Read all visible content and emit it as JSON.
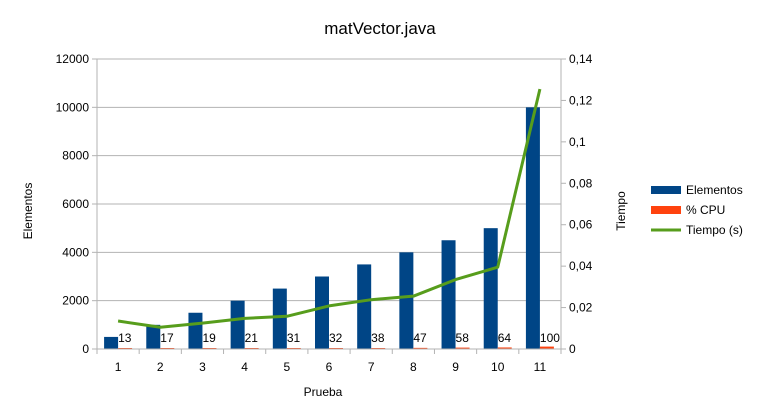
{
  "chart_data": {
    "type": "bar",
    "title": "matVector.java",
    "xlabel": "Prueba",
    "ylabel": "Elementos",
    "y2label": "Tiempo",
    "categories": [
      "1",
      "2",
      "3",
      "4",
      "5",
      "6",
      "7",
      "8",
      "9",
      "10",
      "11"
    ],
    "ylim": [
      0,
      12000
    ],
    "y_ticks": [
      "0",
      "2000",
      "4000",
      "6000",
      "8000",
      "10000",
      "12000"
    ],
    "y2lim": [
      0,
      0.14
    ],
    "y2_ticks": [
      "0",
      "0,02",
      "0,04",
      "0,06",
      "0,08",
      "0,1",
      "0,12",
      "0,14"
    ],
    "grid": true,
    "legend_position": "right",
    "series": [
      {
        "name": "Elementos",
        "type": "bar",
        "axis": "left",
        "color": "#004586",
        "values": [
          500,
          1000,
          1500,
          2000,
          2500,
          3000,
          3500,
          4000,
          4500,
          5000,
          10000
        ]
      },
      {
        "name": "% CPU",
        "type": "bar",
        "axis": "left",
        "color": "#ff420e",
        "values": [
          13,
          17,
          19,
          21,
          31,
          32,
          38,
          47,
          58,
          64,
          100
        ],
        "data_labels": [
          "13",
          "17",
          "19",
          "21",
          "31",
          "32",
          "38",
          "47",
          "58",
          "64",
          "100"
        ]
      },
      {
        "name": "Tiempo (s)",
        "type": "line",
        "axis": "right",
        "color": "#579d1c",
        "values": [
          0.0135,
          0.0105,
          0.0125,
          0.0148,
          0.0158,
          0.0208,
          0.0238,
          0.0255,
          0.0335,
          0.0395,
          0.1255
        ]
      }
    ]
  }
}
